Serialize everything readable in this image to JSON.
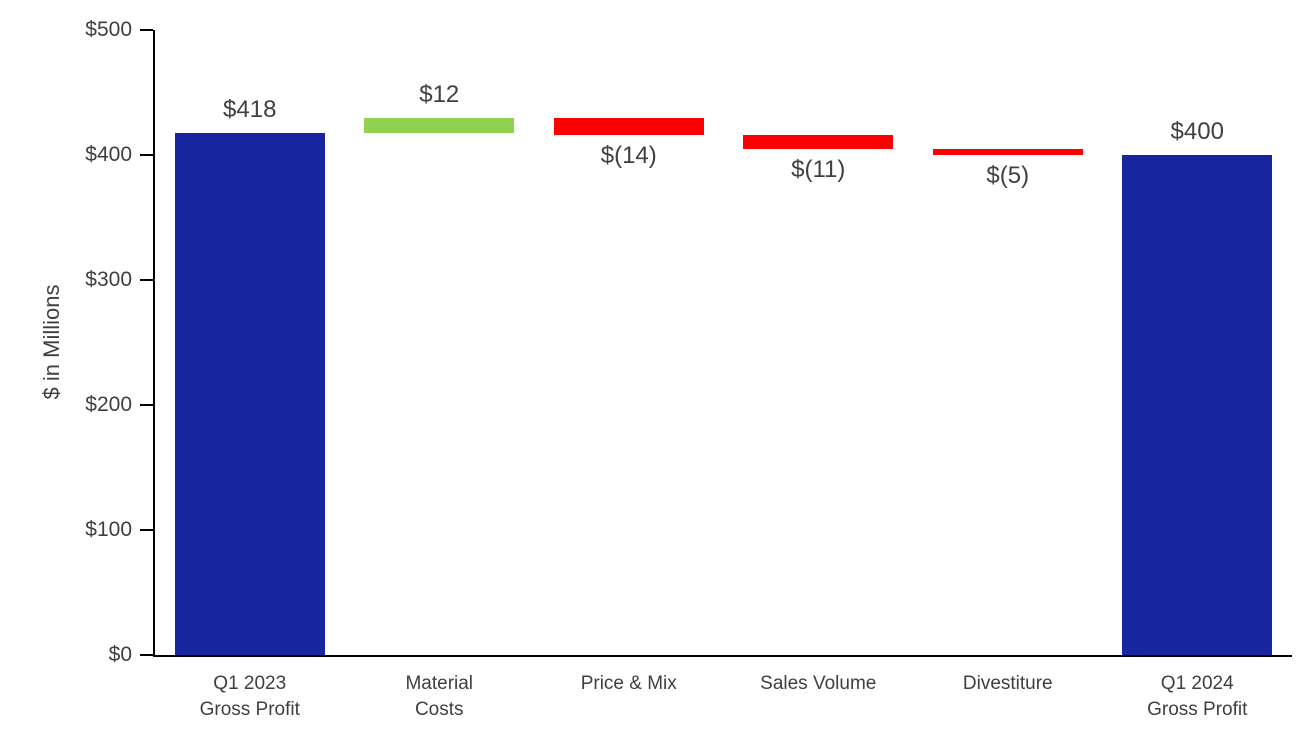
{
  "chart_data": {
    "type": "bar",
    "subtype": "waterfall",
    "title": "",
    "xlabel": "",
    "ylabel": "$ in Millions",
    "ylim": [
      0,
      500
    ],
    "yticks": [
      0,
      100,
      200,
      300,
      400,
      500
    ],
    "ytick_labels": [
      "$0",
      "$100",
      "$200",
      "$300",
      "$400",
      "$500"
    ],
    "grid": false,
    "categories": [
      "Q1 2023 Gross Profit",
      "Material Costs",
      "Price & Mix",
      "Sales Volume",
      "Divestiture",
      "Q1 2024 Gross Profit"
    ],
    "bars": [
      {
        "category_lines": [
          "Q1 2023",
          "Gross Profit"
        ],
        "role": "total",
        "start": 0,
        "end": 418,
        "value": 418,
        "value_label": "$418",
        "value_label_position": "above"
      },
      {
        "category_lines": [
          "Material",
          "Costs"
        ],
        "role": "increase",
        "start": 418,
        "end": 430,
        "value": 12,
        "value_label": "$12",
        "value_label_position": "above"
      },
      {
        "category_lines": [
          "Price & Mix"
        ],
        "role": "decrease",
        "start": 430,
        "end": 416,
        "value": -14,
        "value_label": "$(14)",
        "value_label_position": "below"
      },
      {
        "category_lines": [
          "Sales Volume"
        ],
        "role": "decrease",
        "start": 416,
        "end": 405,
        "value": -11,
        "value_label": "$(11)",
        "value_label_position": "below"
      },
      {
        "category_lines": [
          "Divestiture"
        ],
        "role": "decrease",
        "start": 405,
        "end": 400,
        "value": -5,
        "value_label": "$(5)",
        "value_label_position": "below"
      },
      {
        "category_lines": [
          "Q1 2024",
          "Gross Profit"
        ],
        "role": "total",
        "start": 0,
        "end": 400,
        "value": 400,
        "value_label": "$400",
        "value_label_position": "above"
      }
    ],
    "colors": {
      "total": "#17269e",
      "increase": "#92d050",
      "decrease": "#fe0000",
      "axis": "#000000",
      "text": "#404040"
    }
  }
}
